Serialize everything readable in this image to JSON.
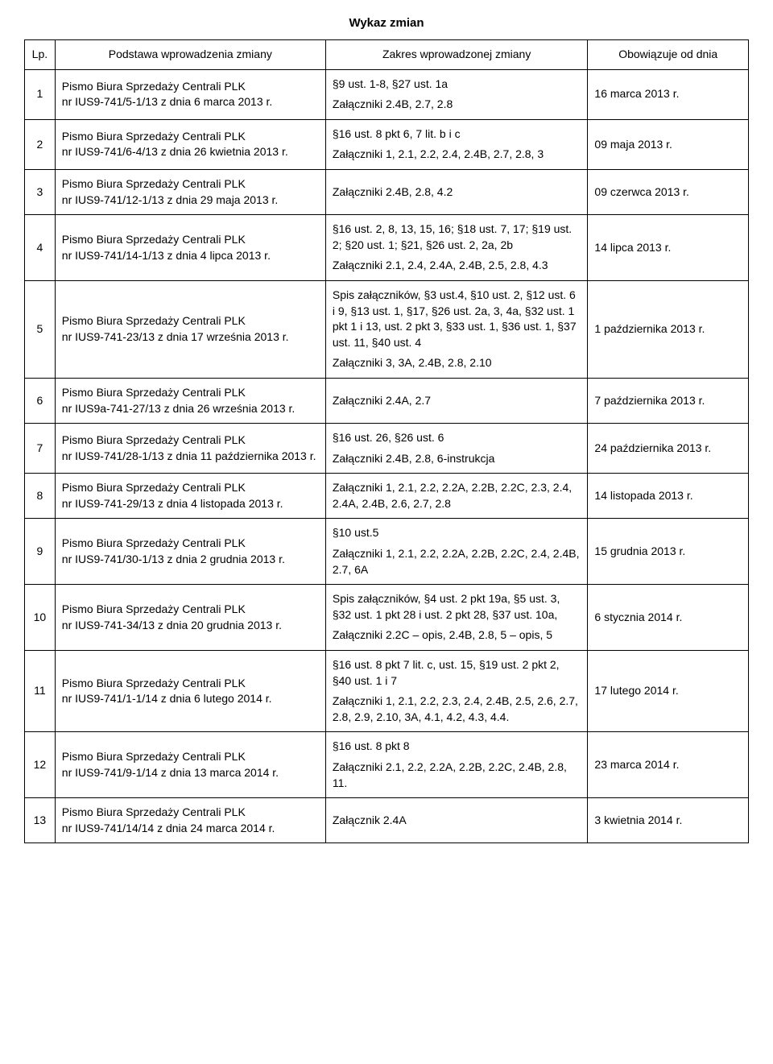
{
  "title": "Wykaz zmian",
  "headers": {
    "lp": "Lp.",
    "basis": "Podstawa wprowadzenia zmiany",
    "scope": "Zakres wprowadzonej zmiany",
    "date": "Obowiązuje od dnia"
  },
  "rows": [
    {
      "lp": "1",
      "basis": "Pismo Biura Sprzedaży Centrali PLK\nnr IUS9-741/5-1/13 z dnia 6 marca 2013 r.",
      "scope": [
        "§9 ust. 1-8, §27 ust. 1a",
        "Załączniki 2.4B, 2.7, 2.8"
      ],
      "date": "16 marca 2013 r."
    },
    {
      "lp": "2",
      "basis": "Pismo Biura Sprzedaży Centrali PLK\nnr IUS9-741/6-4/13 z dnia 26 kwietnia 2013 r.",
      "scope": [
        "§16 ust. 8 pkt 6, 7 lit. b i c",
        "Załączniki 1, 2.1, 2.2, 2.4, 2.4B, 2.7, 2.8, 3"
      ],
      "date": "09 maja 2013 r."
    },
    {
      "lp": "3",
      "basis": "Pismo Biura Sprzedaży Centrali PLK\nnr IUS9-741/12-1/13 z dnia 29 maja 2013 r.",
      "scope": [
        "Załączniki 2.4B, 2.8, 4.2"
      ],
      "date": "09 czerwca 2013 r."
    },
    {
      "lp": "4",
      "basis": "Pismo Biura Sprzedaży Centrali PLK\nnr IUS9-741/14-1/13 z dnia 4 lipca 2013 r.",
      "scope": [
        "§16 ust. 2, 8, 13, 15, 16; §18 ust. 7, 17; §19 ust. 2; §20 ust. 1; §21, §26 ust. 2, 2a, 2b",
        "Załączniki 2.1, 2.4, 2.4A, 2.4B, 2.5, 2.8, 4.3"
      ],
      "date": "14 lipca 2013 r."
    },
    {
      "lp": "5",
      "basis": "Pismo Biura Sprzedaży Centrali PLK\nnr IUS9-741-23/13 z dnia 17 września 2013 r.",
      "scope": [
        "Spis załączników, §3 ust.4, §10 ust. 2, §12 ust. 6 i 9, §13 ust. 1, §17, §26 ust. 2a, 3, 4a, §32 ust. 1 pkt 1 i 13, ust. 2 pkt 3, §33 ust. 1, §36 ust. 1, §37 ust. 11, §40 ust. 4",
        "Załączniki 3, 3A, 2.4B, 2.8, 2.10"
      ],
      "date": "1 października 2013 r."
    },
    {
      "lp": "6",
      "basis": "Pismo Biura Sprzedaży Centrali PLK\nnr IUS9a-741-27/13 z dnia 26 września 2013 r.",
      "scope": [
        "Załączniki 2.4A, 2.7"
      ],
      "date": "7 października 2013 r."
    },
    {
      "lp": "7",
      "basis": "Pismo Biura Sprzedaży Centrali PLK\nnr IUS9-741/28-1/13 z dnia 11 października 2013 r.",
      "scope": [
        "§16 ust. 26, §26 ust. 6",
        "Załączniki 2.4B, 2.8, 6-instrukcja"
      ],
      "date": "24 października 2013 r."
    },
    {
      "lp": "8",
      "basis": "Pismo Biura Sprzedaży Centrali PLK\nnr IUS9-741-29/13 z dnia 4 listopada 2013 r.",
      "scope": [
        "Załączniki 1, 2.1, 2.2, 2.2A, 2.2B, 2.2C, 2.3, 2.4, 2.4A, 2.4B, 2.6, 2.7, 2.8"
      ],
      "date": "14 listopada 2013 r."
    },
    {
      "lp": "9",
      "basis": "Pismo Biura Sprzedaży Centrali PLK\nnr IUS9-741/30-1/13 z dnia 2 grudnia 2013 r.",
      "scope": [
        "§10 ust.5",
        "Załączniki 1, 2.1, 2.2, 2.2A, 2.2B, 2.2C, 2.4, 2.4B, 2.7, 6A"
      ],
      "date": "15 grudnia 2013 r."
    },
    {
      "lp": "10",
      "basis": "Pismo Biura Sprzedaży Centrali PLK\nnr IUS9-741-34/13 z dnia 20 grudnia 2013 r.",
      "scope": [
        "Spis załączników, §4 ust. 2 pkt 19a, §5 ust. 3, §32 ust. 1 pkt 28 i ust. 2 pkt 28, §37 ust. 10a,",
        "Załączniki 2.2C – opis, 2.4B, 2.8, 5 – opis, 5"
      ],
      "date": "6 stycznia 2014 r."
    },
    {
      "lp": "11",
      "basis": "Pismo Biura Sprzedaży Centrali PLK\nnr IUS9-741/1-1/14 z dnia 6 lutego 2014 r.",
      "scope": [
        "§16 ust. 8 pkt 7 lit. c, ust. 15, §19 ust. 2 pkt 2, §40 ust. 1 i 7",
        "Załączniki  1,  2.1,  2.2,  2.3,  2.4, 2.4B, 2.5, 2.6, 2.7, 2.8, 2.9, 2.10, 3A, 4.1, 4.2, 4.3, 4.4."
      ],
      "date": "17 lutego 2014 r."
    },
    {
      "lp": "12",
      "basis": "Pismo Biura Sprzedaży Centrali PLK\nnr IUS9-741/9-1/14 z dnia 13 marca 2014 r.",
      "scope": [
        "§16 ust. 8 pkt 8",
        "Załączniki  2.1,  2.2,  2.2A,  2.2B, 2.2C, 2.4B, 2.8, 11."
      ],
      "date": "23 marca 2014 r."
    },
    {
      "lp": "13",
      "basis": "Pismo Biura Sprzedaży Centrali PLK\nnr IUS9-741/14/14 z dnia 24 marca 2014 r.",
      "scope": [
        "Załącznik 2.4A"
      ],
      "date": "3 kwietnia 2014 r."
    }
  ]
}
